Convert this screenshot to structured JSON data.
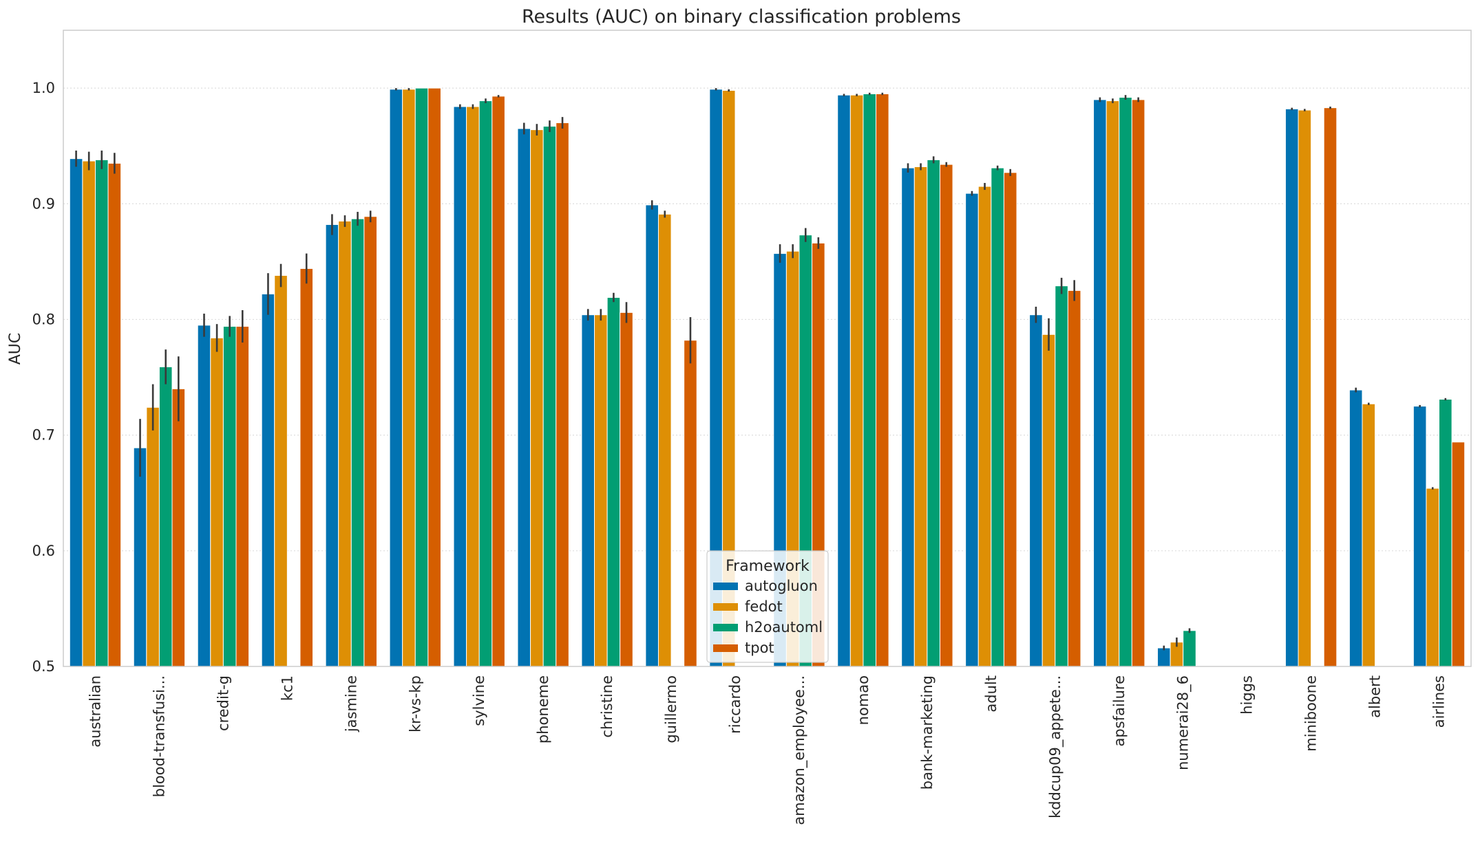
{
  "chart_data": {
    "type": "bar",
    "title": "Results (AUC) on  binary classification problems",
    "xlabel": "",
    "ylabel": "AUC",
    "ylim": [
      0.5,
      1.05
    ],
    "yticks": [
      "0.5",
      "0.6",
      "0.7",
      "0.8",
      "0.9",
      "1.0"
    ],
    "grid": "horizontal",
    "legend": {
      "title": "Framework",
      "placement": "lower-center"
    },
    "categories": [
      "australian",
      "blood-transfusi...",
      "credit-g",
      "kc1",
      "jasmine",
      "kr-vs-kp",
      "sylvine",
      "phoneme",
      "christine",
      "guillermo",
      "riccardo",
      "amazon_employee...",
      "nomao",
      "bank-marketing",
      "adult",
      "kddcup09_appete...",
      "apsfailure",
      "numerai28_6",
      "higgs",
      "miniboone",
      "albert",
      "airlines"
    ],
    "series": [
      {
        "name": "autogluon",
        "color": "#0173b2",
        "values": [
          0.939,
          0.689,
          0.795,
          0.822,
          0.882,
          0.999,
          0.984,
          0.965,
          0.804,
          0.899,
          0.999,
          0.857,
          0.994,
          0.931,
          0.909,
          0.804,
          0.99,
          0.516,
          null,
          0.982,
          0.739,
          0.725
        ],
        "err": [
          0.007,
          0.025,
          0.01,
          0.018,
          0.009,
          0.001,
          0.002,
          0.005,
          0.005,
          0.004,
          0.001,
          0.008,
          0.001,
          0.004,
          0.002,
          0.007,
          0.002,
          0.002,
          null,
          0.001,
          0.002,
          0.001
        ]
      },
      {
        "name": "fedot",
        "color": "#de8f05",
        "values": [
          0.937,
          0.724,
          0.784,
          0.838,
          0.885,
          0.999,
          0.984,
          0.964,
          0.804,
          0.891,
          0.998,
          0.859,
          0.994,
          0.932,
          0.915,
          0.787,
          0.989,
          0.521,
          null,
          0.981,
          0.727,
          0.654
        ],
        "err": [
          0.008,
          0.02,
          0.012,
          0.01,
          0.005,
          0.001,
          0.002,
          0.005,
          0.005,
          0.003,
          0.001,
          0.006,
          0.001,
          0.003,
          0.003,
          0.014,
          0.002,
          0.004,
          null,
          0.001,
          0.001,
          0.001
        ]
      },
      {
        "name": "h2oautoml",
        "color": "#029e73",
        "values": [
          0.938,
          0.759,
          0.794,
          null,
          0.887,
          1.0,
          0.989,
          0.967,
          0.819,
          null,
          null,
          0.873,
          0.995,
          0.938,
          0.931,
          0.829,
          0.992,
          0.531,
          null,
          null,
          null,
          0.731
        ],
        "err": [
          0.008,
          0.015,
          0.009,
          null,
          0.006,
          0.0,
          0.002,
          0.005,
          0.004,
          null,
          null,
          0.006,
          0.001,
          0.003,
          0.002,
          0.007,
          0.002,
          0.002,
          null,
          null,
          null,
          0.001
        ]
      },
      {
        "name": "tpot",
        "color": "#d55e00",
        "values": [
          0.935,
          0.74,
          0.794,
          0.844,
          0.889,
          1.0,
          0.993,
          0.97,
          0.806,
          0.782,
          null,
          0.866,
          0.995,
          0.934,
          0.927,
          0.825,
          0.99,
          null,
          null,
          0.983,
          null,
          0.694
        ],
        "err": [
          0.009,
          0.028,
          0.014,
          0.013,
          0.005,
          0.0,
          0.001,
          0.005,
          0.009,
          0.02,
          null,
          0.005,
          0.001,
          0.002,
          0.003,
          0.009,
          0.002,
          null,
          null,
          0.001,
          null,
          null
        ]
      }
    ]
  }
}
